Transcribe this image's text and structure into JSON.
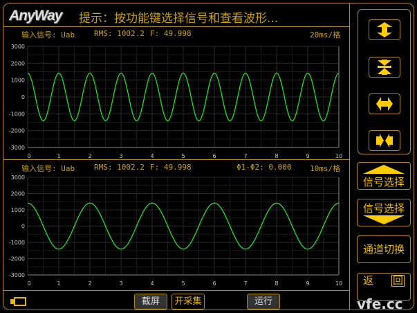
{
  "header": {
    "logo": "AnyWay",
    "hint": "提示：按功能键选择信号和查看波形..."
  },
  "plot1": {
    "signal_label": "输入信号: Uab",
    "rms": "RMS: 1002.2",
    "freq": "F: 49.998",
    "timebase": "20ms/格"
  },
  "plot2": {
    "signal_label": "输入信号: Uab",
    "rms": "RMS: 1002.2",
    "freq": "F: 49.998",
    "phase": "Φ1-Φ2: 0.000",
    "timebase": "10ms/格"
  },
  "chart_data": [
    {
      "type": "line",
      "xlim": [
        0,
        10
      ],
      "ylim": [
        -3000,
        3000
      ],
      "xticks": [
        "0",
        "1",
        "2",
        "3",
        "4",
        "5",
        "6",
        "7",
        "8",
        "9",
        "10"
      ],
      "yticks": [
        "3000",
        "2000",
        "1000",
        "0",
        "-1000",
        "-2000",
        "-3000"
      ],
      "grid": true,
      "color": "#22e022",
      "series": [
        {
          "waveform": "cosine",
          "amplitude": 1414,
          "period": 1
        }
      ]
    },
    {
      "type": "line",
      "xlim": [
        0,
        10
      ],
      "ylim": [
        -3000,
        3000
      ],
      "xticks": [
        "0",
        "1",
        "2",
        "3",
        "4",
        "5",
        "6",
        "7",
        "8",
        "9",
        "10"
      ],
      "yticks": [
        "3000",
        "2000",
        "1000",
        "0",
        "-1000",
        "-2000",
        "-3000"
      ],
      "grid": true,
      "color": "#22e022",
      "series": [
        {
          "waveform": "cosine",
          "amplitude": 1414,
          "period": 2
        }
      ]
    }
  ],
  "bottom": {
    "screenshot": "截屏",
    "start_capture": "开采集",
    "run": "运行"
  },
  "side": {
    "signal_up": "信号选择",
    "signal_down": "信号选择",
    "channel_switch": "通道切换",
    "back_left": "返",
    "back_right": "回"
  },
  "watermark": "vfe.cc",
  "colors": {
    "accent": "#b08a0c",
    "text": "#c9a10f",
    "wave": "#22e022",
    "icon": "#ffcc00"
  }
}
